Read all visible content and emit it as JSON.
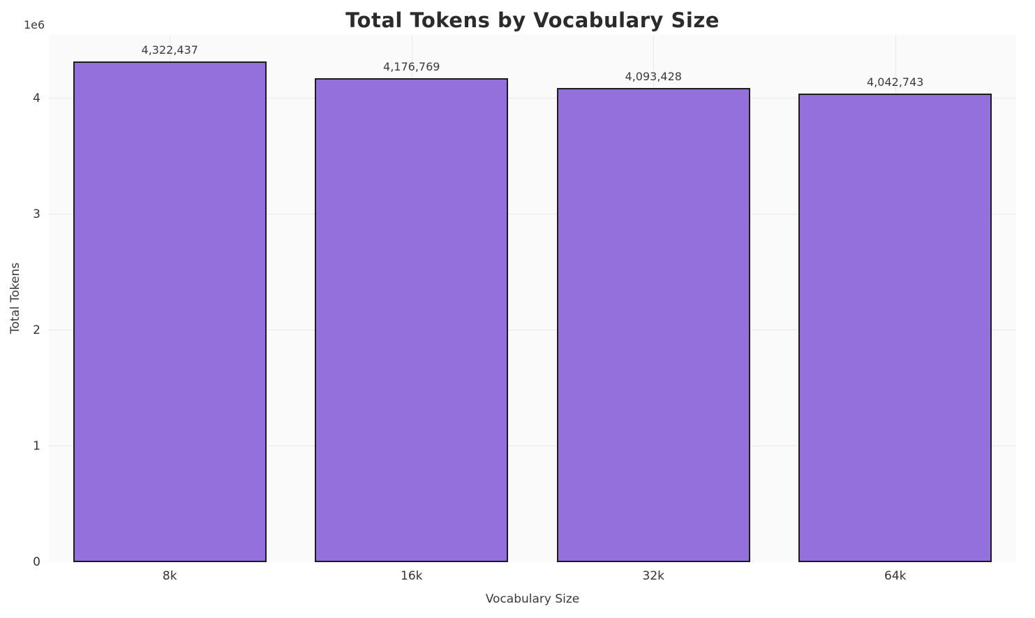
{
  "chart_data": {
    "type": "bar",
    "title": "Total Tokens by Vocabulary Size",
    "xlabel": "Vocabulary Size",
    "ylabel": "Total Tokens",
    "y_offset_label": "1e6",
    "categories": [
      "8k",
      "16k",
      "32k",
      "64k"
    ],
    "values": [
      4322437,
      4176769,
      4093428,
      4042743
    ],
    "value_labels": [
      "4,322,437",
      "4,176,769",
      "4,093,428",
      "4,042,743"
    ],
    "y_ticks": [
      0,
      1,
      2,
      3,
      4
    ],
    "y_tick_unit": 1000000,
    "ylim": [
      0,
      4550000
    ],
    "bar_width_fraction": 0.8,
    "grid": true,
    "legend": false,
    "bar_color": "#9370DB",
    "bar_edge_color": "#1c1c1c",
    "grid_color": "#e7e7e7",
    "text_color": "#3a3a3a"
  }
}
